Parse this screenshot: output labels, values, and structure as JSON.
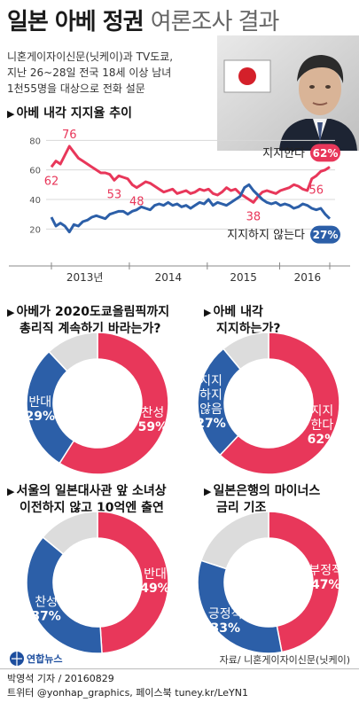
{
  "header": {
    "title_main": "일본 아베 정권",
    "title_sub": "여론조사 결과",
    "subtitle_lines": [
      "니혼게이자이신문(닛케이)과 TV도쿄,",
      "지난 26~28일 전국 18세 이상 남녀",
      "1천55명을 대상으로 전화 설문"
    ]
  },
  "colors": {
    "support": "#e8375a",
    "oppose": "#2c5fa8",
    "other": "#dcdcdc"
  },
  "chart_data": [
    {
      "type": "line",
      "title": "아베 내각 지지율 추이",
      "x_labels": [
        "2013년",
        "2014",
        "2015",
        "2016"
      ],
      "y_ticks": [
        20,
        40,
        60,
        80
      ],
      "ylim": [
        10,
        85
      ],
      "grid": true,
      "series": [
        {
          "name": "지지한다",
          "end_label": "62%",
          "values": [
            62,
            66,
            64,
            70,
            76,
            72,
            68,
            66,
            64,
            62,
            60,
            58,
            58,
            57,
            53,
            56,
            55,
            54,
            50,
            48,
            50,
            52,
            51,
            49,
            47,
            45,
            46,
            47,
            44,
            45,
            46,
            44,
            45,
            47,
            46,
            47,
            44,
            43,
            45,
            48,
            46,
            47,
            44,
            42,
            40,
            38,
            42,
            45,
            46,
            45,
            44,
            46,
            47,
            48,
            50,
            49,
            47,
            46,
            54,
            56,
            59,
            60,
            62
          ],
          "annotations": [
            {
              "index": 0,
              "value": "62"
            },
            {
              "index": 4,
              "value": "76"
            },
            {
              "index": 14,
              "value": "53"
            },
            {
              "index": 19,
              "value": "48"
            },
            {
              "index": 45,
              "value": "38"
            },
            {
              "index": 59,
              "value": "56"
            }
          ]
        },
        {
          "name": "지지하지 않는다",
          "end_label": "27%",
          "values": [
            28,
            22,
            24,
            22,
            18,
            23,
            22,
            25,
            26,
            28,
            29,
            28,
            27,
            30,
            31,
            32,
            32,
            30,
            32,
            33,
            35,
            34,
            33,
            36,
            37,
            36,
            38,
            36,
            37,
            35,
            36,
            34,
            36,
            38,
            37,
            40,
            36,
            38,
            37,
            36,
            38,
            40,
            42,
            48,
            50,
            46,
            43,
            40,
            38,
            37,
            38,
            36,
            37,
            36,
            34,
            35,
            37,
            36,
            34,
            33,
            34,
            30,
            27
          ]
        }
      ]
    },
    {
      "type": "pie",
      "title_lines": [
        "아베가 2020도쿄올림픽까지",
        "총리직 계속하기 바라는가?"
      ],
      "slices": [
        {
          "label": "찬성",
          "value": 59,
          "pct": "59%",
          "color": "#e8375a"
        },
        {
          "label": "반대",
          "value": 29,
          "pct": "29%",
          "color": "#2c5fa8"
        },
        {
          "label": "",
          "value": 12,
          "pct": "",
          "color": "#dcdcdc"
        }
      ]
    },
    {
      "type": "pie",
      "title_lines": [
        "아베 내각",
        "지지하는가?"
      ],
      "slices": [
        {
          "label": "지지\n한다",
          "value": 62,
          "pct": "62%",
          "color": "#e8375a"
        },
        {
          "label": "지지\n하지\n않음",
          "value": 27,
          "pct": "27%",
          "color": "#2c5fa8"
        },
        {
          "label": "",
          "value": 11,
          "pct": "",
          "color": "#dcdcdc"
        }
      ]
    },
    {
      "type": "pie",
      "title_lines": [
        "서울의 일본대사관 앞 소녀상",
        "이전하지 않고 10억엔 출연"
      ],
      "slices": [
        {
          "label": "반대",
          "value": 49,
          "pct": "49%",
          "color": "#e8375a"
        },
        {
          "label": "찬성",
          "value": 37,
          "pct": "37%",
          "color": "#2c5fa8"
        },
        {
          "label": "",
          "value": 14,
          "pct": "",
          "color": "#dcdcdc"
        }
      ]
    },
    {
      "type": "pie",
      "title_lines": [
        "일본은행의 마이너스",
        "금리 기조"
      ],
      "slices": [
        {
          "label": "부정적",
          "value": 47,
          "pct": "47%",
          "color": "#e8375a"
        },
        {
          "label": "긍정적",
          "value": 33,
          "pct": "33%",
          "color": "#2c5fa8"
        },
        {
          "label": "",
          "value": 20,
          "pct": "",
          "color": "#dcdcdc"
        }
      ]
    }
  ],
  "footer": {
    "source": "자료/ 니혼게이자이신문(닛케이)",
    "logo_text": "연합뉴스",
    "credit_line1": "박영석 기자 / 20160829",
    "credit_line2": "트위터 @yonhap_graphics, 페이스북 tuney.kr/LeYN1"
  }
}
